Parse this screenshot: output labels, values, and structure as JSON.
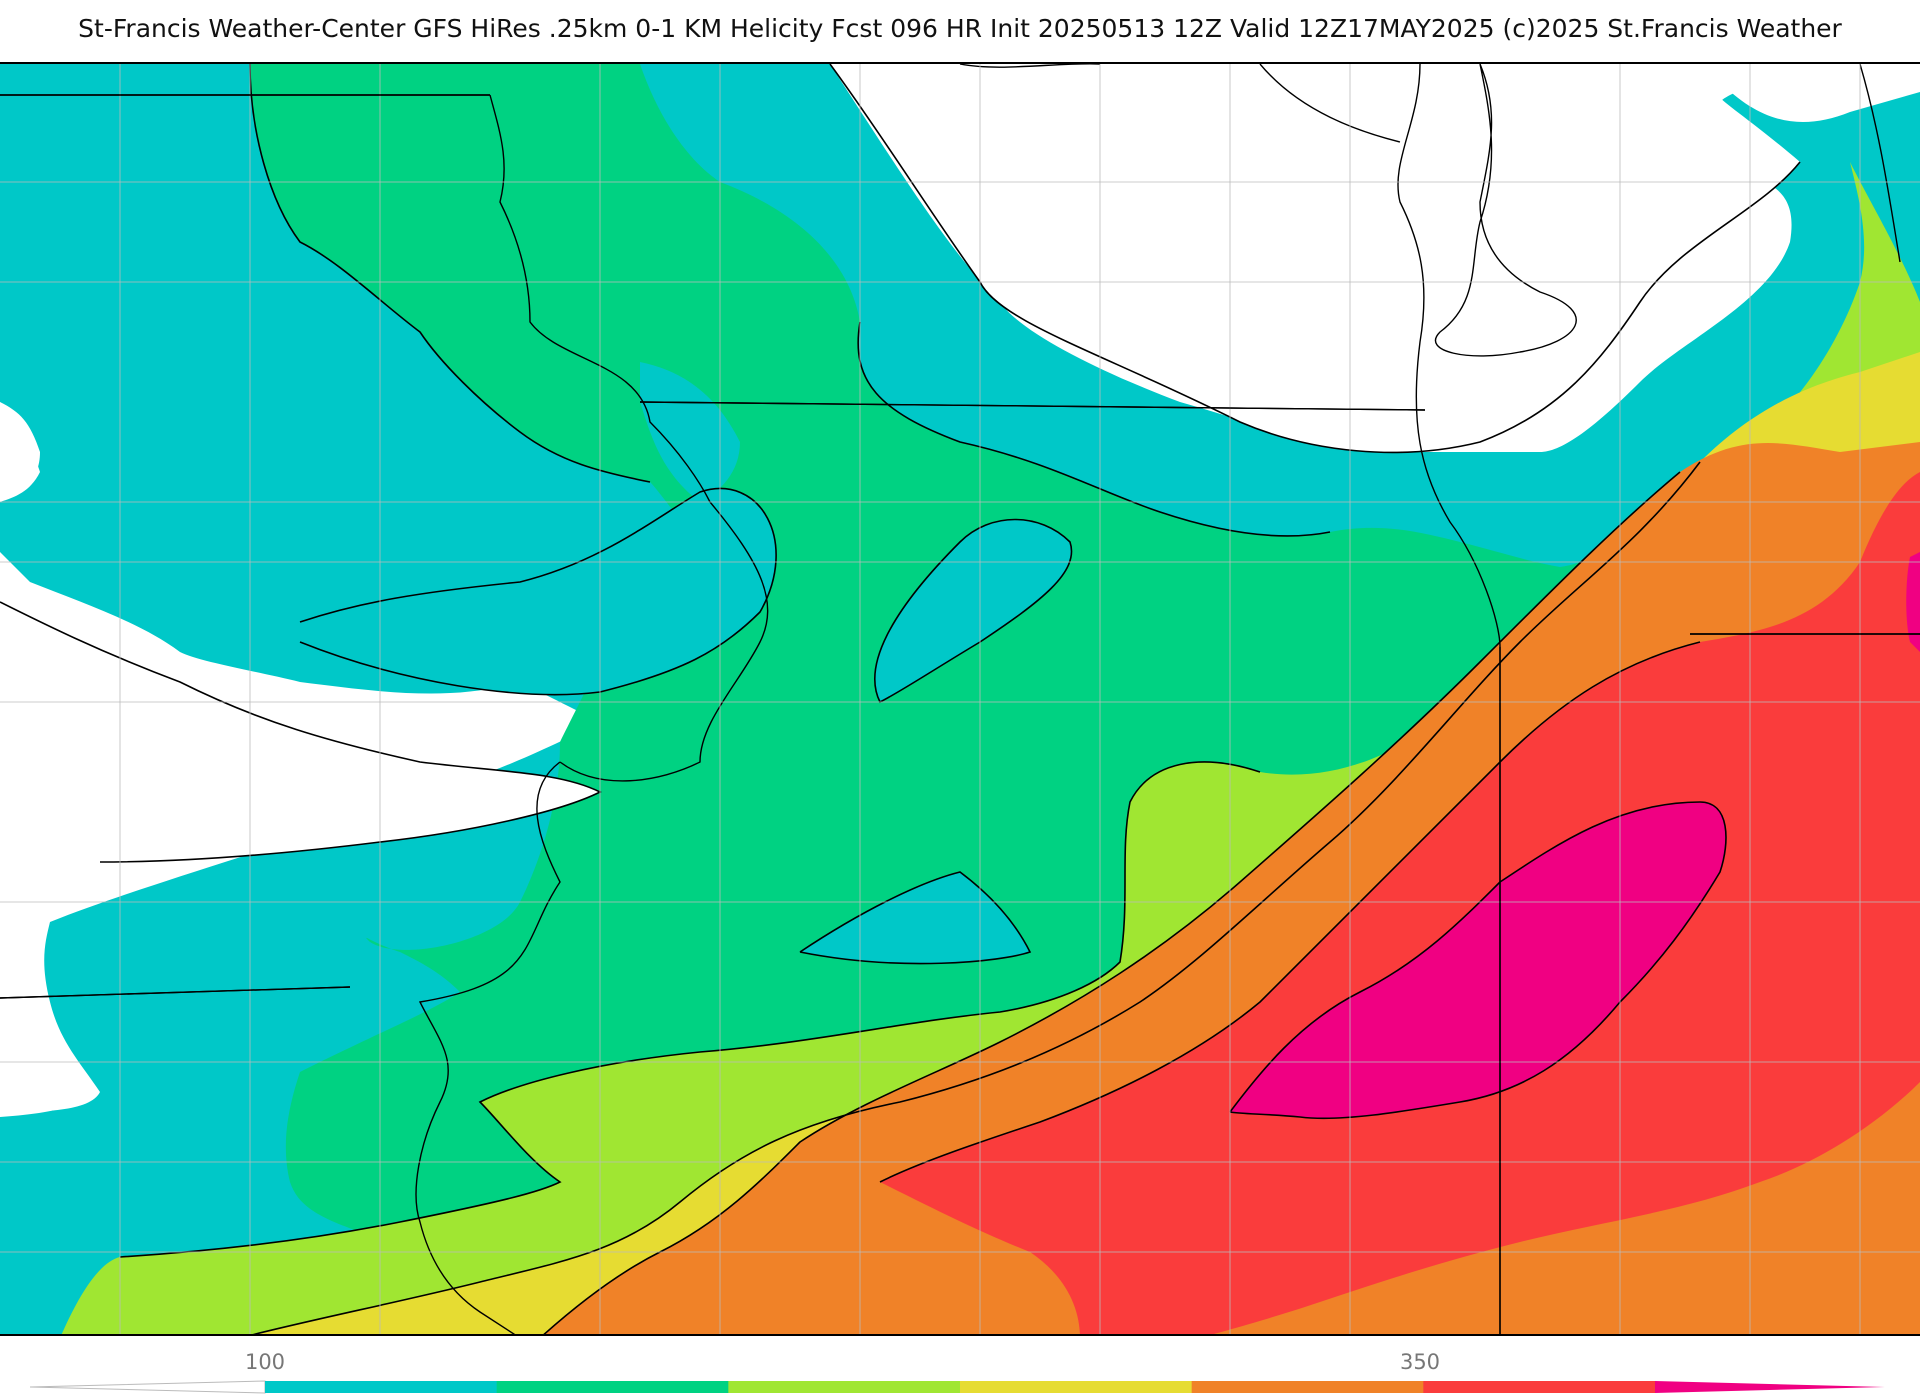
{
  "title": "St-Francis Weather-Center GFS HiRes .25km 0-1 KM Helicity Fcst 096 HR Init 20250513 12Z  Valid 12Z17MAY2025    (c)2025 St.Francis Weather",
  "legend": {
    "tick_labels": [
      "100",
      "350"
    ],
    "bins": [
      {
        "color": "#00c8c8"
      },
      {
        "color": "#00d282"
      },
      {
        "color": "#a0e632"
      },
      {
        "color": "#e6dc32"
      },
      {
        "color": "#f08228"
      },
      {
        "color": "#fa3c3c"
      },
      {
        "color": "#f00082"
      }
    ]
  },
  "palette": {
    "none": "#ffffff",
    "cyan": "#00c8c8",
    "green": "#00d282",
    "lime": "#a0e632",
    "yellow": "#e6dc32",
    "orange": "#f08228",
    "red": "#fa3c3c",
    "magenta": "#f00082",
    "border": "#000000",
    "county": "#bbbbbb"
  }
}
